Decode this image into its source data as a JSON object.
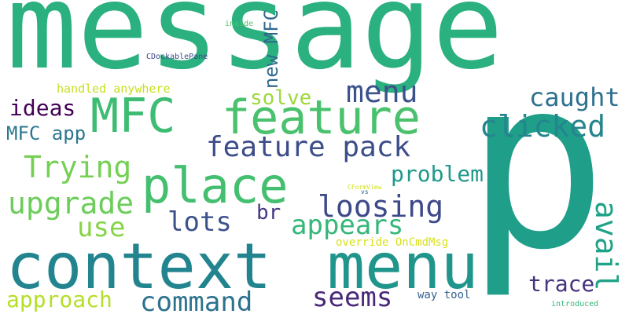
{
  "words": [
    {
      "text": "message",
      "color": "#2bb07f"
    },
    {
      "text": "p",
      "color": "#1f9e89"
    },
    {
      "text": "context",
      "color": "#22848e"
    },
    {
      "text": "menu",
      "color": "#1f958b"
    },
    {
      "text": "feature",
      "color": "#4ac16d"
    },
    {
      "text": "MFC",
      "color": "#3fbc73"
    },
    {
      "text": "place",
      "color": "#44bf70"
    },
    {
      "text": "feature pack",
      "color": "#3d4d8a"
    },
    {
      "text": "clicked",
      "color": "#25858e"
    },
    {
      "text": "menu",
      "color": "#3b528b"
    },
    {
      "text": "caught",
      "color": "#2d718e"
    },
    {
      "text": "Trying",
      "color": "#75d054"
    },
    {
      "text": "upgrade",
      "color": "#6ccd5a"
    },
    {
      "text": "loosing",
      "color": "#3e4989"
    },
    {
      "text": "appears",
      "color": "#35b779"
    },
    {
      "text": "lots",
      "color": "#3b528b"
    },
    {
      "text": "use",
      "color": "#86d549"
    },
    {
      "text": "avail",
      "color": "#1fa287"
    },
    {
      "text": "command",
      "color": "#2c728e"
    },
    {
      "text": "seems",
      "color": "#482878"
    },
    {
      "text": "approach",
      "color": "#b5de2b"
    },
    {
      "text": "trace",
      "color": "#46327e"
    },
    {
      "text": "problem",
      "color": "#1f988b"
    },
    {
      "text": "solve",
      "color": "#9dd93b"
    },
    {
      "text": "ideas",
      "color": "#440154"
    },
    {
      "text": "MFC app",
      "color": "#2a788e"
    },
    {
      "text": "new MFC",
      "color": "#31688e"
    },
    {
      "text": "br",
      "color": "#453882"
    },
    {
      "text": "handled anywhere",
      "color": "#c8e020"
    },
    {
      "text": "override OnCmdMsg",
      "color": "#d8e219"
    },
    {
      "text": "way tool",
      "color": "#33638d"
    },
    {
      "text": "CDockablePane",
      "color": "#3e4989"
    },
    {
      "text": "inside",
      "color": "#54c568"
    },
    {
      "text": "CFormView",
      "color": "#d0e11c"
    },
    {
      "text": "vs",
      "color": "#34618d"
    },
    {
      "text": "introduced",
      "color": "#35b779"
    }
  ]
}
